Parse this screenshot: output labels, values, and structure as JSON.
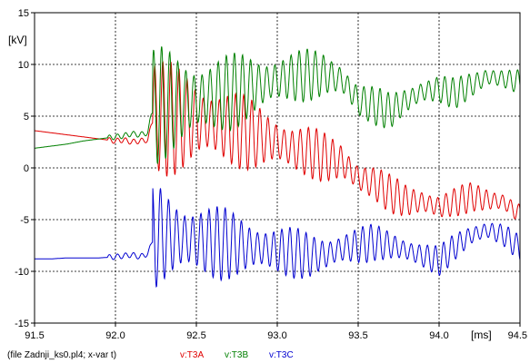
{
  "chart_data": {
    "type": "line",
    "xlabel": "[ms]",
    "ylabel": "[kV]",
    "xlim": [
      91.5,
      94.5
    ],
    "ylim": [
      -15,
      15
    ],
    "x_ticks": [
      91.5,
      92.0,
      92.5,
      93.0,
      93.5,
      94.0,
      94.5
    ],
    "x_tick_labels": [
      "91.5",
      "92.0",
      "92.5",
      "93.0",
      "93.5",
      "94.0",
      "94.5"
    ],
    "y_ticks": [
      -15,
      -10,
      -5,
      0,
      5,
      10,
      15
    ],
    "y_tick_labels": [
      "-15",
      "-10",
      "-5",
      "0",
      "5",
      "10",
      "15"
    ],
    "grid": true,
    "footer_text": "(file Zadnji_ks0.pl4; x-var t)",
    "legend": [
      {
        "label": "v:T3A",
        "color": "#e00000"
      },
      {
        "label": "v:T3B",
        "color": "#008000"
      },
      {
        "label": "v:T3C",
        "color": "#0000d0"
      }
    ],
    "series": [
      {
        "color": "#e00000",
        "x": [
          91.5,
          91.6,
          91.7,
          91.8,
          91.9,
          92.0,
          92.05,
          92.1,
          92.15,
          92.2,
          92.22,
          92.24,
          92.3,
          92.4,
          92.5,
          92.6,
          92.7,
          92.8,
          92.9,
          93.0,
          93.1,
          93.2,
          93.3,
          93.4,
          93.5,
          93.6,
          93.7,
          93.8,
          93.9,
          94.0,
          94.1,
          94.2,
          94.3,
          94.4,
          94.5
        ],
        "y": [
          3.6,
          3.4,
          3.2,
          3.0,
          2.8,
          2.6,
          2.7,
          2.5,
          2.6,
          2.7,
          4.0,
          5.0,
          4.8,
          4.6,
          4.5,
          4.2,
          3.8,
          3.4,
          3.0,
          2.5,
          1.8,
          1.5,
          1.0,
          0.6,
          -1.0,
          -1.5,
          -2.5,
          -3.2,
          -3.3,
          -3.8,
          -3.3,
          -2.8,
          -3.1,
          -3.3,
          -4.5
        ]
      },
      {
        "color": "#008000",
        "x": [
          91.5,
          91.6,
          91.7,
          91.8,
          91.9,
          92.0,
          92.05,
          92.1,
          92.15,
          92.2,
          92.22,
          92.24,
          92.3,
          92.4,
          92.5,
          92.6,
          92.7,
          92.8,
          92.9,
          93.0,
          93.1,
          93.2,
          93.3,
          93.4,
          93.5,
          93.6,
          93.7,
          93.8,
          93.9,
          94.0,
          94.1,
          94.2,
          94.3,
          94.4,
          94.5
        ],
        "y": [
          1.9,
          2.1,
          2.3,
          2.6,
          2.8,
          3.0,
          3.1,
          3.3,
          3.2,
          3.4,
          5.0,
          6.0,
          6.2,
          6.4,
          6.6,
          6.9,
          7.3,
          7.7,
          8.0,
          8.5,
          8.8,
          9.0,
          9.0,
          8.5,
          6.5,
          6.0,
          5.5,
          6.5,
          7.4,
          7.6,
          7.2,
          8.0,
          8.8,
          8.6,
          8.3
        ]
      },
      {
        "color": "#0000d0",
        "x": [
          91.5,
          91.6,
          91.7,
          91.8,
          91.9,
          92.0,
          92.05,
          92.1,
          92.15,
          92.2,
          92.22,
          92.24,
          92.3,
          92.4,
          92.5,
          92.6,
          92.7,
          92.8,
          92.9,
          93.0,
          93.1,
          93.2,
          93.3,
          93.4,
          93.5,
          93.6,
          93.7,
          93.8,
          93.9,
          94.0,
          94.1,
          94.2,
          94.3,
          94.4,
          94.5
        ],
        "y": [
          -8.8,
          -8.8,
          -8.7,
          -8.7,
          -8.7,
          -8.6,
          -8.5,
          -8.4,
          -8.6,
          -8.3,
          -7.5,
          -6.5,
          -6.6,
          -6.8,
          -7.0,
          -7.2,
          -7.4,
          -7.6,
          -7.8,
          -8.0,
          -8.2,
          -8.5,
          -8.4,
          -7.8,
          -7.5,
          -7.2,
          -7.5,
          -8.0,
          -8.5,
          -9.0,
          -7.6,
          -6.5,
          -6.0,
          -6.5,
          -7.8
        ]
      }
    ]
  }
}
